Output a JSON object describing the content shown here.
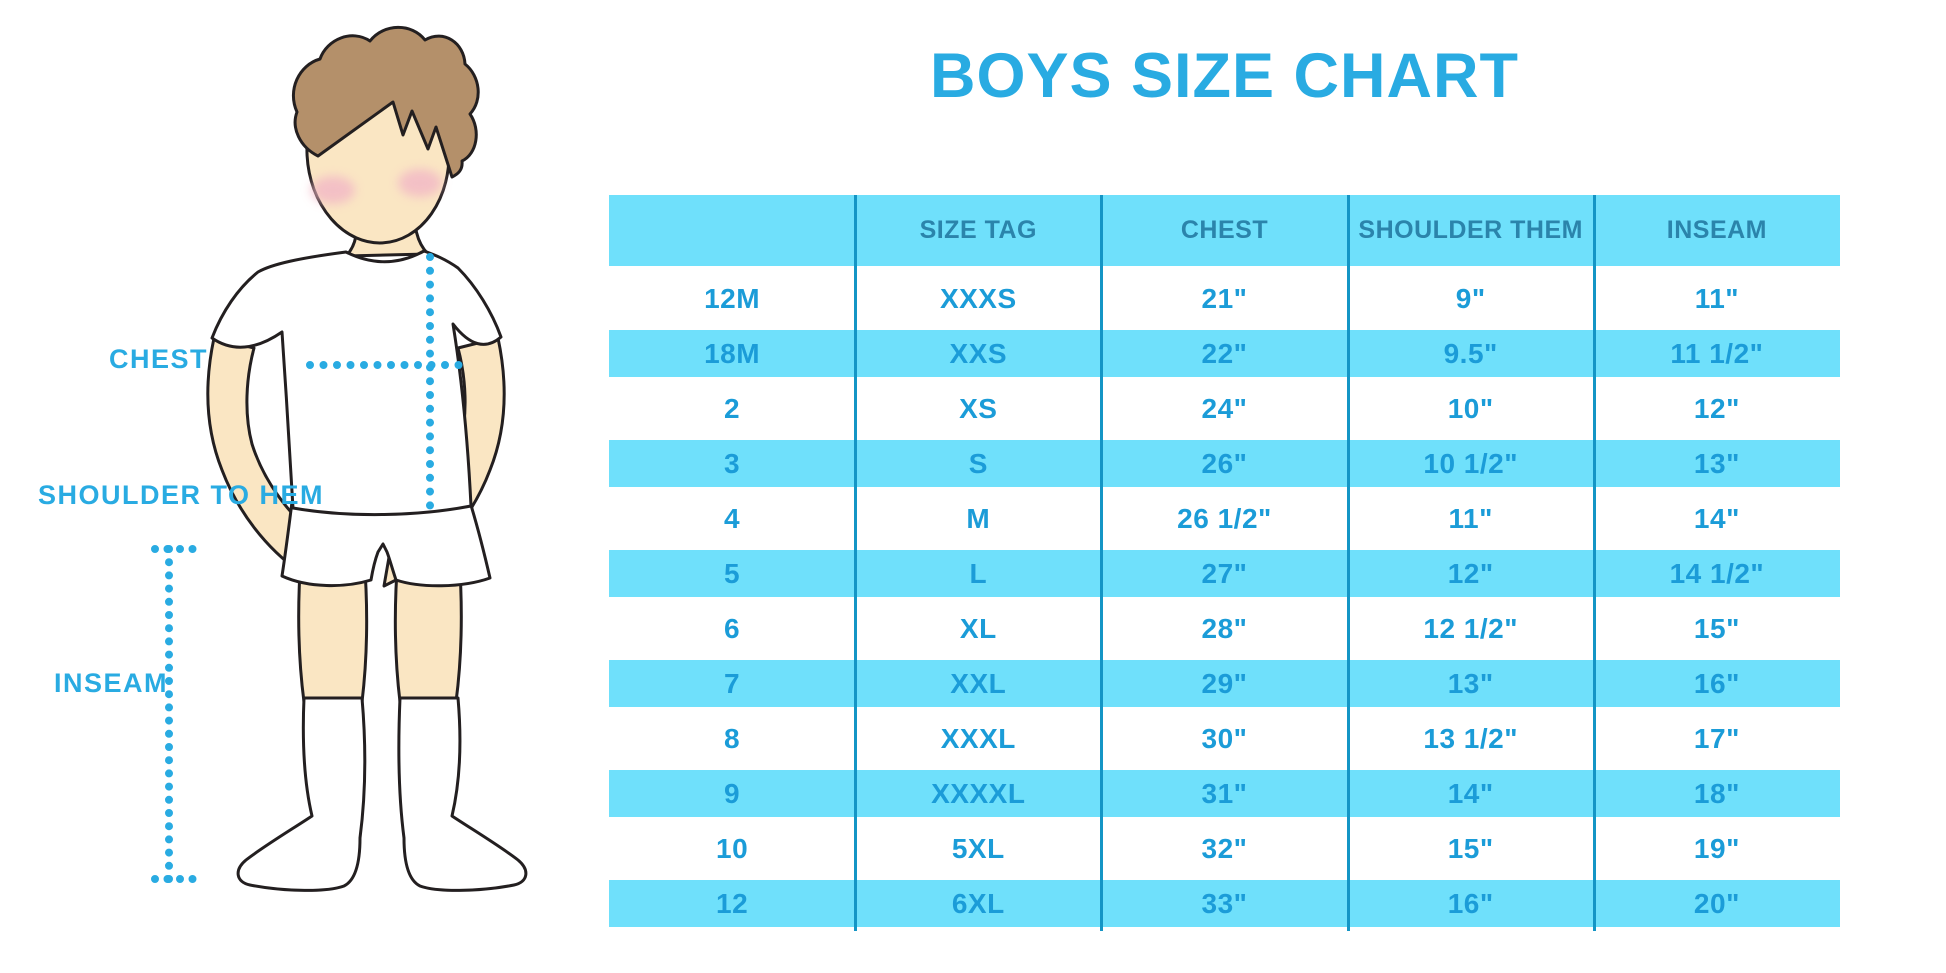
{
  "title": "BOYS SIZE CHART",
  "diagram": {
    "labels": {
      "chest": "CHEST",
      "shoulder_to_hem": "SHOULDER TO HEM",
      "inseam": "INSEAM"
    }
  },
  "table": {
    "headers": [
      "",
      "SIZE TAG",
      "CHEST",
      "SHOULDER THEM",
      "INSEAM"
    ],
    "rows": [
      [
        "12M",
        "XXXS",
        "21\"",
        "9\"",
        "11\""
      ],
      [
        "18M",
        "XXS",
        "22\"",
        "9.5\"",
        "11 1/2\""
      ],
      [
        "2",
        "XS",
        "24\"",
        "10\"",
        "12\""
      ],
      [
        "3",
        "S",
        "26\"",
        "10 1/2\"",
        "13\""
      ],
      [
        "4",
        "M",
        "26 1/2\"",
        "11\"",
        "14\""
      ],
      [
        "5",
        "L",
        "27\"",
        "12\"",
        "14 1/2\""
      ],
      [
        "6",
        "XL",
        "28\"",
        "12 1/2\"",
        "15\""
      ],
      [
        "7",
        "XXL",
        "29\"",
        "13\"",
        "16\""
      ],
      [
        "8",
        "XXXL",
        "30\"",
        "13 1/2\"",
        "17\""
      ],
      [
        "9",
        "XXXXL",
        "31\"",
        "14\"",
        "18\""
      ],
      [
        "10",
        "5XL",
        "32\"",
        "15\"",
        "19\""
      ],
      [
        "12",
        "6XL",
        "33\"",
        "16\"",
        "20\""
      ]
    ]
  },
  "colors": {
    "accent_blue": "#29abe2",
    "table_fill": "#6fe0fb",
    "value_text": "#1b9cd8",
    "header_text": "#2b84ab",
    "divider": "#1495c5",
    "skin": "#fae6c3",
    "hair": "#b4906a",
    "blush": "#f2b7c6"
  },
  "chart_data": {
    "type": "table",
    "title": "BOYS SIZE CHART",
    "columns": [
      "",
      "SIZE TAG",
      "CHEST",
      "SHOULDER THEM",
      "INSEAM"
    ],
    "rows": [
      [
        "12M",
        "XXXS",
        "21\"",
        "9\"",
        "11\""
      ],
      [
        "18M",
        "XXS",
        "22\"",
        "9.5\"",
        "11 1/2\""
      ],
      [
        "2",
        "XS",
        "24\"",
        "10\"",
        "12\""
      ],
      [
        "3",
        "S",
        "26\"",
        "10 1/2\"",
        "13\""
      ],
      [
        "4",
        "M",
        "26 1/2\"",
        "11\"",
        "14\""
      ],
      [
        "5",
        "L",
        "27\"",
        "12\"",
        "14 1/2\""
      ],
      [
        "6",
        "XL",
        "28\"",
        "12 1/2\"",
        "15\""
      ],
      [
        "7",
        "XXL",
        "29\"",
        "13\"",
        "16\""
      ],
      [
        "8",
        "XXXL",
        "30\"",
        "13 1/2\"",
        "17\""
      ],
      [
        "9",
        "XXXXL",
        "31\"",
        "14\"",
        "18\""
      ],
      [
        "10",
        "5XL",
        "32\"",
        "15\"",
        "19\""
      ],
      [
        "12",
        "6XL",
        "33\"",
        "16\"",
        "20\""
      ]
    ],
    "measurement_labels": [
      "CHEST",
      "SHOULDER TO HEM",
      "INSEAM"
    ],
    "notes": "Alternating white/light-blue striped rows; no outer border; 4 vertical divider lines"
  }
}
